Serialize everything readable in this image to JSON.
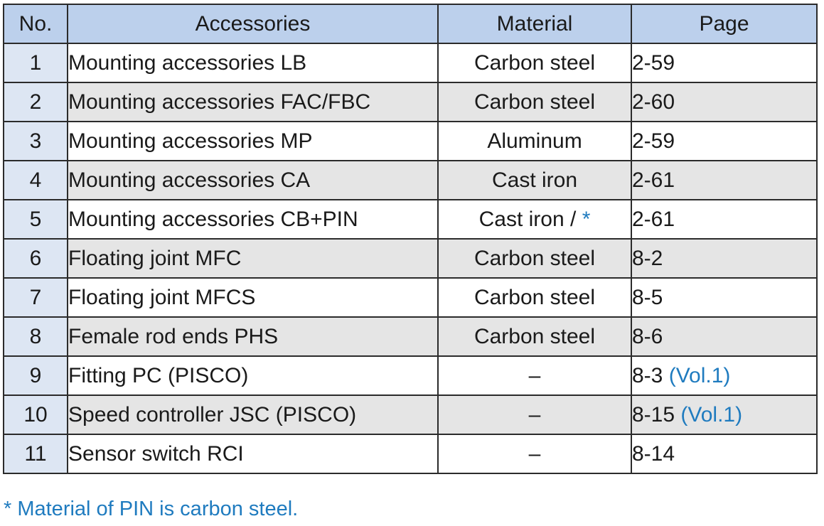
{
  "table": {
    "headers": {
      "no": "No.",
      "accessories": "Accessories",
      "material": "Material",
      "page": "Page"
    },
    "rows": [
      {
        "no": "1",
        "accessory": "Mounting accessories LB",
        "material": "Carbon steel",
        "material_note": "",
        "page": "2-59",
        "page_note": ""
      },
      {
        "no": "2",
        "accessory": "Mounting accessories FAC/FBC",
        "material": "Carbon steel",
        "material_note": "",
        "page": "2-60",
        "page_note": ""
      },
      {
        "no": "3",
        "accessory": "Mounting accessories MP",
        "material": "Aluminum",
        "material_note": "",
        "page": "2-59",
        "page_note": ""
      },
      {
        "no": "4",
        "accessory": "Mounting accessories CA",
        "material": "Cast iron",
        "material_note": "",
        "page": "2-61",
        "page_note": ""
      },
      {
        "no": "5",
        "accessory": "Mounting accessories CB+PIN",
        "material": "Cast iron / ",
        "material_note": "*",
        "page": "2-61",
        "page_note": ""
      },
      {
        "no": "6",
        "accessory": "Floating joint MFC",
        "material": "Carbon steel",
        "material_note": "",
        "page": "8-2",
        "page_note": ""
      },
      {
        "no": "7",
        "accessory": "Floating joint MFCS",
        "material": "Carbon steel",
        "material_note": "",
        "page": "8-5",
        "page_note": ""
      },
      {
        "no": "8",
        "accessory": "Female rod ends PHS",
        "material": "Carbon steel",
        "material_note": "",
        "page": "8-6",
        "page_note": ""
      },
      {
        "no": "9",
        "accessory": "Fitting PC (PISCO)",
        "material": "–",
        "material_note": "",
        "page": "8-3 ",
        "page_note": "(Vol.1)"
      },
      {
        "no": "10",
        "accessory": "Speed controller JSC (PISCO)",
        "material": "–",
        "material_note": "",
        "page": "8-15 ",
        "page_note": "(Vol.1)"
      },
      {
        "no": "11",
        "accessory": "Sensor switch RCI",
        "material": "–",
        "material_note": "",
        "page": "8-14",
        "page_note": ""
      }
    ]
  },
  "footnote": "* Material of PIN is carbon steel.",
  "colors": {
    "header_bg": "#bcd0ec",
    "no_column_bg": "#dde6f3",
    "alt_row_bg": "#e5e5e5",
    "note_text": "#1f7bbf",
    "border": "#2b2b2b"
  }
}
